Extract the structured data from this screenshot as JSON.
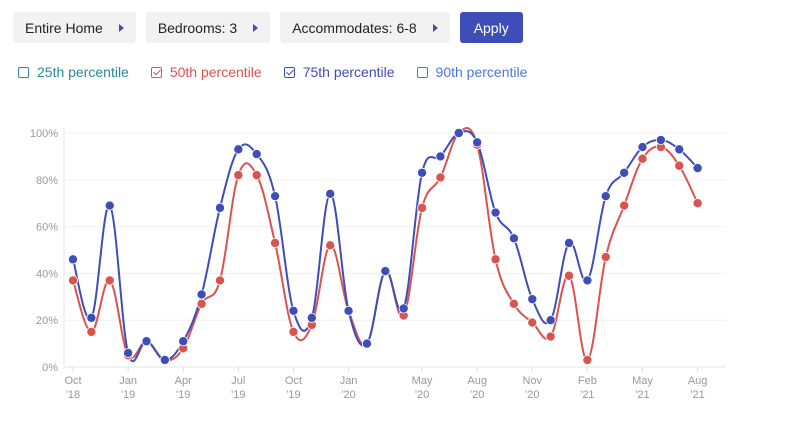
{
  "filters": {
    "home_type": "Entire Home",
    "bedrooms": "Bedrooms: 3",
    "accommodates": "Accommodates: 6-8",
    "apply_label": "Apply"
  },
  "legend": [
    {
      "label": "25th percentile",
      "color": "#2a8a9c",
      "checked": false
    },
    {
      "label": "50th percentile",
      "color": "#d9534f",
      "checked": true
    },
    {
      "label": "75th percentile",
      "color": "#3f4db8",
      "checked": true
    },
    {
      "label": "90th percentile",
      "color": "#4a78d8",
      "checked": false
    }
  ],
  "chart_data": {
    "type": "line",
    "ylim": [
      0,
      100
    ],
    "y_ticks": [
      "0%",
      "20%",
      "40%",
      "60%",
      "80%",
      "100%"
    ],
    "x_ticks": [
      {
        "month": "Oct",
        "year": "'18"
      },
      {
        "month": "Jan",
        "year": "'19"
      },
      {
        "month": "Apr",
        "year": "'19"
      },
      {
        "month": "Jul",
        "year": "'19"
      },
      {
        "month": "Oct",
        "year": "'19"
      },
      {
        "month": "Jan",
        "year": "'20"
      },
      {
        "month": "May",
        "year": "'20"
      },
      {
        "month": "Aug",
        "year": "'20"
      },
      {
        "month": "Nov",
        "year": "'20"
      },
      {
        "month": "Feb",
        "year": "'21"
      },
      {
        "month": "May",
        "year": "'21"
      },
      {
        "month": "Aug",
        "year": "'21"
      }
    ],
    "x": [
      "2018-10",
      "2018-11",
      "2018-12",
      "2019-01",
      "2019-02",
      "2019-03",
      "2019-04",
      "2019-05",
      "2019-06",
      "2019-07",
      "2019-08",
      "2019-09",
      "2019-10",
      "2019-11",
      "2019-12",
      "2020-01",
      "2020-02",
      "2020-03",
      "2020-04",
      "2020-05",
      "2020-06",
      "2020-07",
      "2020-08",
      "2020-09",
      "2020-10",
      "2020-11",
      "2020-12",
      "2021-01",
      "2021-02",
      "2021-03",
      "2021-04",
      "2021-05",
      "2021-06",
      "2021-07",
      "2021-08",
      "2021-09"
    ],
    "series": [
      {
        "name": "50th percentile",
        "color": "#d9534f",
        "values": [
          37,
          15,
          37,
          5,
          11,
          3,
          8,
          27,
          37,
          82,
          82,
          53,
          15,
          18,
          52,
          24,
          10,
          41,
          22,
          68,
          81,
          100,
          95,
          46,
          27,
          19,
          13,
          39,
          3,
          47,
          69,
          89,
          94,
          86,
          70,
          null
        ]
      },
      {
        "name": "75th percentile",
        "color": "#3f4db8",
        "values": [
          46,
          21,
          69,
          6,
          11,
          3,
          11,
          31,
          68,
          93,
          91,
          73,
          24,
          21,
          74,
          24,
          10,
          41,
          25,
          83,
          90,
          100,
          96,
          66,
          55,
          29,
          20,
          53,
          37,
          73,
          83,
          94,
          97,
          93,
          85,
          null
        ]
      }
    ]
  }
}
